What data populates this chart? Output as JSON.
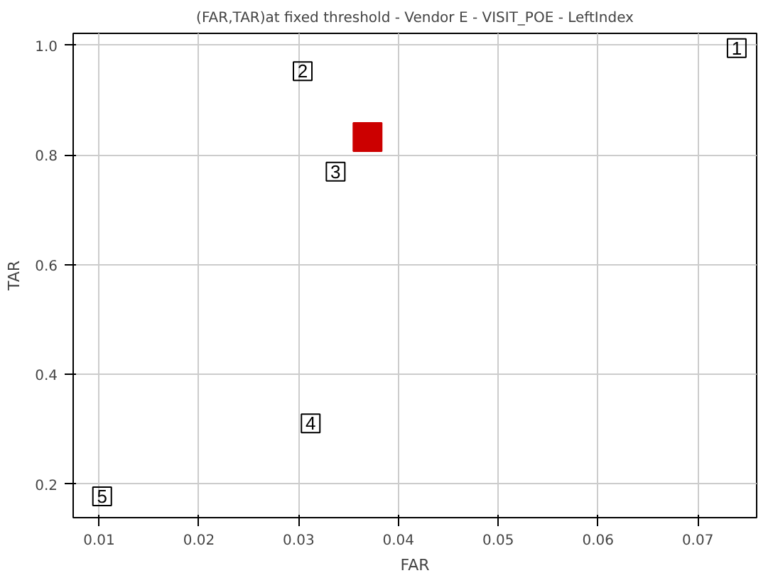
{
  "chart_data": {
    "type": "scatter",
    "title": "(FAR,TAR)at fixed threshold - Vendor E - VISIT_POE - LeftIndex",
    "xlabel": "FAR",
    "ylabel": "TAR",
    "xlim": [
      0.0074,
      0.0759
    ],
    "ylim": [
      0.139,
      1.022
    ],
    "xticks": [
      0.01,
      0.02,
      0.03,
      0.04,
      0.05,
      0.06,
      0.07
    ],
    "yticks": [
      0.2,
      0.4,
      0.6,
      0.8,
      {
        "value": 1,
        "label": "1.0"
      }
    ],
    "grid": true,
    "marker": "square",
    "series": [
      {
        "color": "#000000",
        "x": [
          0.0739,
          0.0304,
          0.0337,
          0.0312,
          0.0103
        ],
        "values": [
          0.995,
          0.953,
          0.77,
          0.311,
          0.178
        ]
      },
      {
        "color": "#cc0000",
        "x": [
          0.0369
        ],
        "values": [
          0.833
        ]
      }
    ],
    "annotations": [
      {
        "text": "1",
        "x": 0.0739,
        "y": 0.995
      },
      {
        "text": "2",
        "x": 0.0304,
        "y": 0.953
      },
      {
        "text": "3",
        "x": 0.0337,
        "y": 0.77
      },
      {
        "text": "4",
        "x": 0.0312,
        "y": 0.311
      },
      {
        "text": "5",
        "x": 0.0103,
        "y": 0.178
      }
    ]
  }
}
